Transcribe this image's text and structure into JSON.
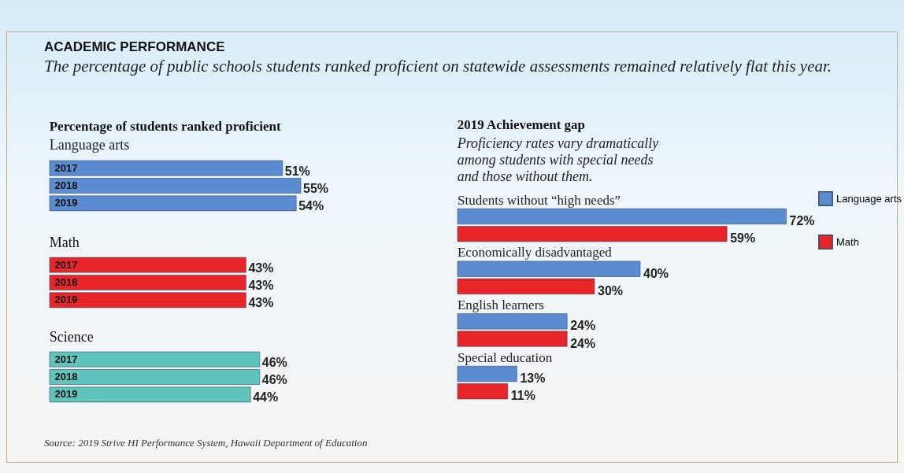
{
  "chart_data": [
    {
      "type": "other",
      "title": "ACADEMIC PERFORMANCE",
      "subtitle": "The percentage of public schools students ranked proficient on statewide assessments remained relatively flat this year.",
      "annotations": [
        "Source: 2019 Strive HI Performance System, Hawaii Department of Education"
      ]
    },
    {
      "type": "bar",
      "orientation": "horizontal",
      "title": "Percentage of students ranked proficient",
      "subtitle": "Language arts",
      "categories": [
        "2017",
        "2018",
        "2019"
      ],
      "values": [
        51,
        55,
        54
      ],
      "value_labels": [
        "51%",
        "55%",
        "54%"
      ],
      "color": "#5b8bd0"
    },
    {
      "type": "bar",
      "orientation": "horizontal",
      "title": "Math",
      "categories": [
        "2017",
        "2018",
        "2019"
      ],
      "values": [
        43,
        43,
        43
      ],
      "value_labels": [
        "43%",
        "43%",
        "43%"
      ],
      "color": "#e8262a"
    },
    {
      "type": "bar",
      "orientation": "horizontal",
      "title": "Science",
      "categories": [
        "2017",
        "2018",
        "2019"
      ],
      "values": [
        46,
        46,
        44
      ],
      "value_labels": [
        "46%",
        "46%",
        "44%"
      ],
      "color": "#5fc4bb"
    },
    {
      "type": "bar",
      "orientation": "horizontal",
      "title": "2019 Achievement gap",
      "subtitle": "Proficiency rates vary dramatically among students with special needs and those without them.",
      "categories": [
        "Students without “high needs”",
        "Economically disadvantaged",
        "English learners",
        "Special education"
      ],
      "legend": "right",
      "series": [
        {
          "name": "Language arts",
          "color": "#5b8bd0",
          "values": [
            72,
            40,
            24,
            13
          ],
          "value_labels": [
            "72%",
            "40%",
            "24%",
            "13%"
          ]
        },
        {
          "name": "Math",
          "color": "#e8262a",
          "values": [
            59,
            30,
            24,
            11
          ],
          "value_labels": [
            "59%",
            "30%",
            "24%",
            "11%"
          ]
        }
      ]
    }
  ]
}
